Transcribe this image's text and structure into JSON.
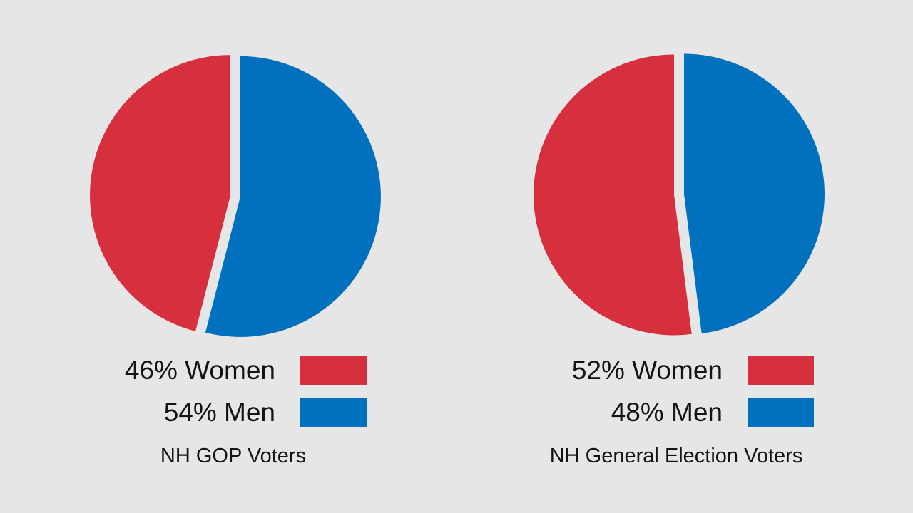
{
  "chart_data": [
    {
      "type": "pie",
      "title": "NH GOP Voters",
      "slices": [
        {
          "label": "Women",
          "value": 46,
          "color": "#d62f3e",
          "legend": "46% Women"
        },
        {
          "label": "Men",
          "value": 54,
          "color": "#0170be",
          "legend": "54% Men"
        }
      ]
    },
    {
      "type": "pie",
      "title": "NH General Election Voters",
      "slices": [
        {
          "label": "Women",
          "value": 52,
          "color": "#d62f3e",
          "legend": "52% Women"
        },
        {
          "label": "Men",
          "value": 48,
          "color": "#0170be",
          "legend": "48% Men"
        }
      ]
    }
  ]
}
